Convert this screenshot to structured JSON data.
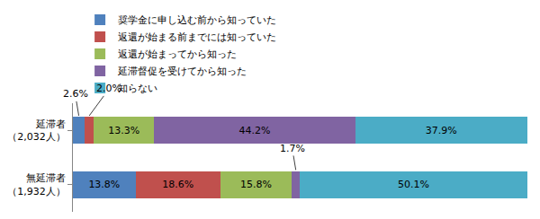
{
  "chart_data": {
    "type": "bar",
    "orientation": "horizontal",
    "stacked": true,
    "categories": [
      "延滞者\n（2,032人）",
      "無延滞者\n（1,932人）"
    ],
    "series": [
      {
        "name": "奨学金に申し込む前から知っていた",
        "color": "#4f81bd",
        "values": [
          2.6,
          13.8
        ],
        "value_labels": [
          "2.6%",
          "13.8%"
        ]
      },
      {
        "name": "返還が始まる前までには知っていた",
        "color": "#c0504d",
        "values": [
          2.0,
          18.6
        ],
        "value_labels": [
          "2.0%",
          "18.6%"
        ]
      },
      {
        "name": "返還が始まってから知った",
        "color": "#9bbb59",
        "values": [
          13.3,
          15.8
        ],
        "value_labels": [
          "13.3%",
          "15.8%"
        ]
      },
      {
        "name": "延滞督促を受けてから知った",
        "color": "#8064a2",
        "values": [
          44.2,
          1.7
        ],
        "value_labels": [
          "44.2%",
          "1.7%"
        ]
      },
      {
        "name": "知らない",
        "color": "#4bacc6",
        "values": [
          37.9,
          50.1
        ],
        "value_labels": [
          "37.9%",
          "50.1%"
        ]
      }
    ],
    "xlim": [
      0,
      100
    ],
    "data_labels": true,
    "tick_labels": "y",
    "legend": "top",
    "grid": false
  }
}
